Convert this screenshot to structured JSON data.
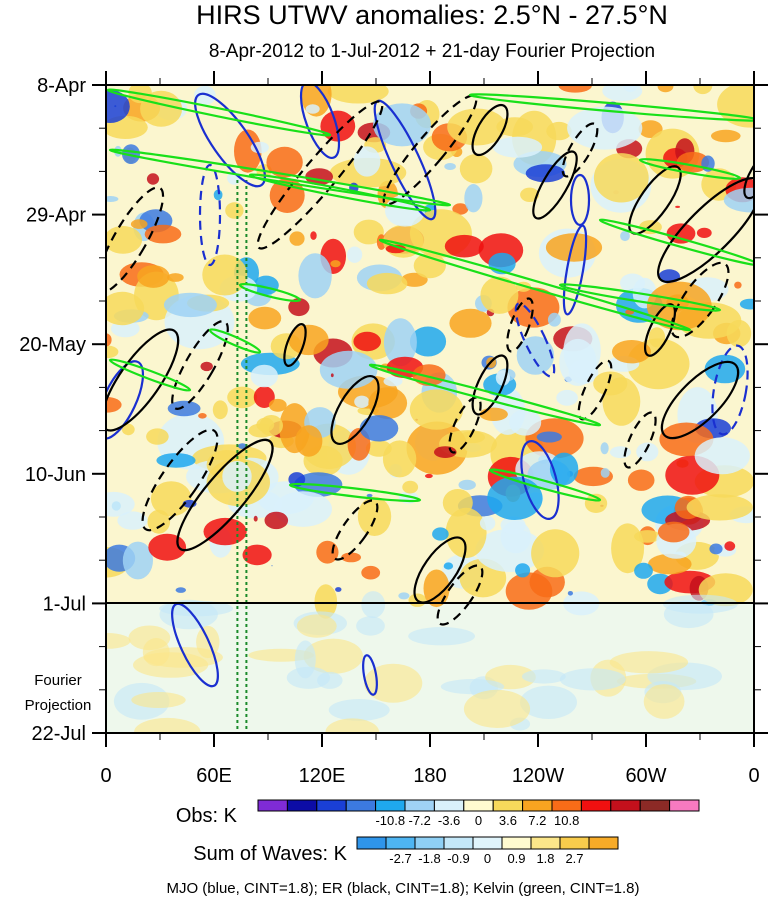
{
  "chart_data": {
    "type": "heatmap",
    "title": "HIRS UTWV anomalies: 2.5°N - 27.5°N",
    "subtitle": "8-Apr-2012 to 1-Jul-2012 + 21-day Fourier Projection",
    "y_tick_labels": [
      "8-Apr",
      "29-Apr",
      "20-May",
      "10-Jun",
      "1-Jul",
      "22-Jul"
    ],
    "y_tick_days": [
      0,
      21,
      42,
      63,
      84,
      105
    ],
    "x_tick_labels": [
      "0",
      "60E",
      "120E",
      "180",
      "120W",
      "60W",
      "0"
    ],
    "x_tick_lons": [
      0,
      60,
      120,
      180,
      240,
      300,
      360
    ],
    "xlim": [
      0,
      360
    ],
    "ylim_days": [
      0,
      105
    ],
    "projection_start_day": 84,
    "projection_label": "Fourier Projection",
    "guide_lines_lon": [
      73,
      78
    ],
    "obs_colorbar": {
      "label": "Obs: K",
      "tick_labels": [
        "-10.8",
        "-7.2",
        "-3.6",
        "0",
        "3.6",
        "7.2",
        "10.8"
      ],
      "colors": [
        "#7f2bd6",
        "#0c0ca6",
        "#1a3fd6",
        "#3c7ae0",
        "#1fa8ee",
        "#9fd2f5",
        "#d9f1fb",
        "#fffbd0",
        "#f7d95b",
        "#f8a420",
        "#f86c18",
        "#f01010",
        "#c4101c",
        "#8c2a26",
        "#f77ac0"
      ]
    },
    "waves_colorbar": {
      "label": "Sum of Waves: K",
      "tick_labels": [
        "-2.7",
        "-1.8",
        "-0.9",
        "0",
        "0.9",
        "1.8",
        "2.7"
      ],
      "colors": [
        "#2f95ea",
        "#4eb5f2",
        "#8fd0f5",
        "#c4e8f9",
        "#e0f4fb",
        "#fffbd0",
        "#fbe68a",
        "#f8cc4c",
        "#f7ab28"
      ]
    },
    "contour_legend": "MJO (blue, CINT=1.8); ER (black, CINT=1.8); Kelvin (green, CINT=1.8)",
    "series": [
      {
        "name": "MJO",
        "color": "#1a2fd0"
      },
      {
        "name": "ER",
        "color": "#000000"
      },
      {
        "name": "Kelvin",
        "color": "#19e019"
      }
    ]
  }
}
